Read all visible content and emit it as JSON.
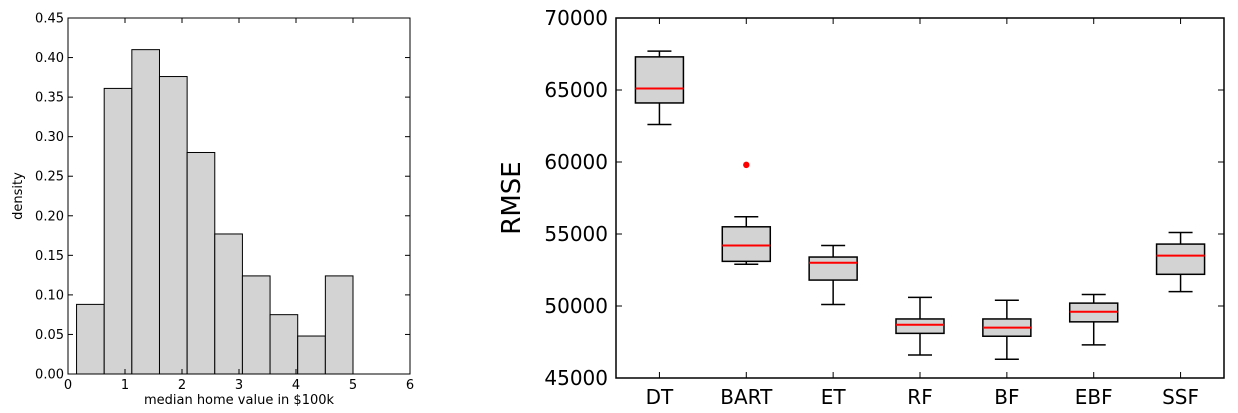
{
  "chart_data": [
    {
      "type": "bar",
      "title": "",
      "xlabel": "median home value in $100k",
      "ylabel": "density",
      "xlim": [
        0,
        6
      ],
      "ylim": [
        0,
        0.45
      ],
      "xticks": [
        "0",
        "1",
        "2",
        "3",
        "4",
        "5",
        "6"
      ],
      "yticks": [
        "0.00",
        "0.05",
        "0.10",
        "0.15",
        "0.20",
        "0.25",
        "0.30",
        "0.35",
        "0.40",
        "0.45"
      ],
      "bins": [
        {
          "start": 0.15,
          "end": 0.635,
          "value": 0.088
        },
        {
          "start": 0.635,
          "end": 1.12,
          "value": 0.361
        },
        {
          "start": 1.12,
          "end": 1.605,
          "value": 0.41
        },
        {
          "start": 1.605,
          "end": 2.09,
          "value": 0.376
        },
        {
          "start": 2.09,
          "end": 2.575,
          "value": 0.28
        },
        {
          "start": 2.575,
          "end": 3.06,
          "value": 0.177
        },
        {
          "start": 3.06,
          "end": 3.545,
          "value": 0.124
        },
        {
          "start": 3.545,
          "end": 4.03,
          "value": 0.075
        },
        {
          "start": 4.03,
          "end": 4.515,
          "value": 0.048
        },
        {
          "start": 4.515,
          "end": 5.0,
          "value": 0.124
        }
      ],
      "bar_color": "#d3d3d3",
      "grid": false
    },
    {
      "type": "box",
      "title": "",
      "xlabel": "",
      "ylabel": "RMSE",
      "ylim": [
        45000,
        70000
      ],
      "yticks": [
        "45000",
        "50000",
        "55000",
        "60000",
        "65000",
        "70000"
      ],
      "box_color": "#d3d3d3",
      "median_color": "#ff0000",
      "outlier_color": "#ff0000",
      "grid": false,
      "boxes": [
        {
          "label": "DT",
          "whisker_low": 62600,
          "q1": 64100,
          "median": 65100,
          "q3": 67300,
          "whisker_high": 67700,
          "outliers": []
        },
        {
          "label": "BART",
          "whisker_low": 52900,
          "q1": 53100,
          "median": 54200,
          "q3": 55500,
          "whisker_high": 56200,
          "outliers": [
            59800
          ]
        },
        {
          "label": "ET",
          "whisker_low": 50100,
          "q1": 51800,
          "median": 53000,
          "q3": 53400,
          "whisker_high": 54200,
          "outliers": []
        },
        {
          "label": "RF",
          "whisker_low": 46600,
          "q1": 48100,
          "median": 48700,
          "q3": 49100,
          "whisker_high": 50600,
          "outliers": []
        },
        {
          "label": "BF",
          "whisker_low": 46300,
          "q1": 47900,
          "median": 48500,
          "q3": 49100,
          "whisker_high": 50400,
          "outliers": []
        },
        {
          "label": "EBF",
          "whisker_low": 47300,
          "q1": 48900,
          "median": 49600,
          "q3": 50200,
          "whisker_high": 50800,
          "outliers": []
        },
        {
          "label": "SSF",
          "whisker_low": 51000,
          "q1": 52200,
          "median": 53500,
          "q3": 54300,
          "whisker_high": 55100,
          "outliers": []
        }
      ]
    }
  ]
}
